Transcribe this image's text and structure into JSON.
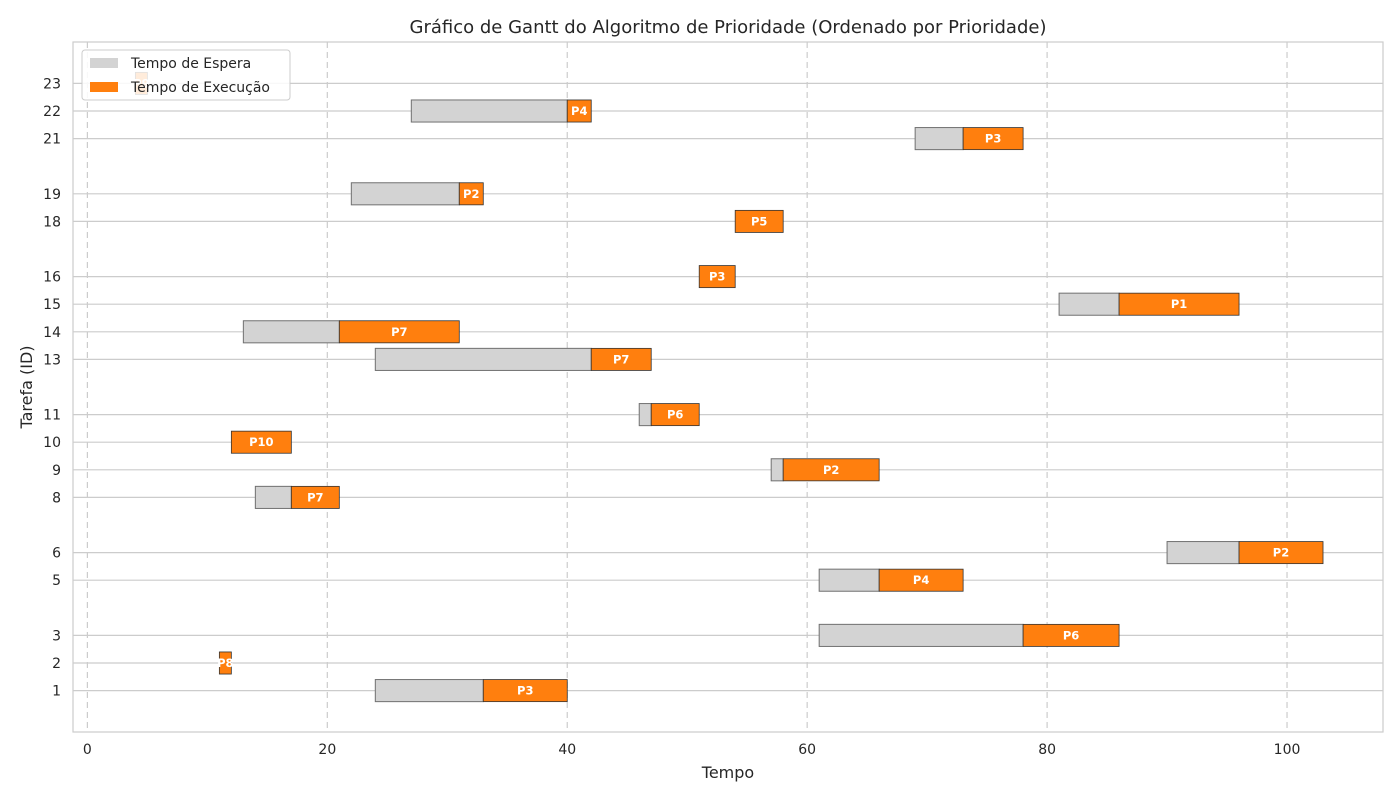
{
  "chart_data": {
    "type": "gantt",
    "title": "Gráfico de Gantt do Algoritmo de Prioridade (Ordenado por Prioridade)",
    "xlabel": "Tempo",
    "ylabel": "Tarefa (ID)",
    "xlim": [
      -1.2,
      108
    ],
    "ylim": [
      -0.5,
      24.5
    ],
    "x_ticks": [
      0,
      20,
      40,
      60,
      80,
      100
    ],
    "y_ticks": [
      1,
      2,
      3,
      5,
      6,
      8,
      9,
      10,
      11,
      13,
      14,
      15,
      16,
      18,
      19,
      21,
      22,
      23
    ],
    "grid": {
      "x": "dashed",
      "y": "solid"
    },
    "legend": {
      "placement": "top-left",
      "entries": [
        {
          "label": "Tempo de Espera",
          "color": "#d3d3d3"
        },
        {
          "label": "Tempo de Execução",
          "color": "#ff7f0e"
        }
      ]
    },
    "colors": {
      "wait": "#d3d3d3",
      "exec": "#ff7f0e"
    },
    "tasks": [
      {
        "id": 23,
        "arrival": 4,
        "start": 4,
        "end": 5,
        "priority": "P9"
      },
      {
        "id": 22,
        "arrival": 27,
        "start": 40,
        "end": 42,
        "priority": "P4"
      },
      {
        "id": 21,
        "arrival": 69,
        "start": 73,
        "end": 78,
        "priority": "P3"
      },
      {
        "id": 19,
        "arrival": 22,
        "start": 31,
        "end": 33,
        "priority": "P2"
      },
      {
        "id": 18,
        "arrival": 54,
        "start": 54,
        "end": 58,
        "priority": "P5"
      },
      {
        "id": 16,
        "arrival": 51,
        "start": 51,
        "end": 54,
        "priority": "P3"
      },
      {
        "id": 15,
        "arrival": 81,
        "start": 86,
        "end": 96,
        "priority": "P1"
      },
      {
        "id": 14,
        "arrival": 13,
        "start": 21,
        "end": 31,
        "priority": "P7"
      },
      {
        "id": 13,
        "arrival": 24,
        "start": 42,
        "end": 47,
        "priority": "P7"
      },
      {
        "id": 11,
        "arrival": 46,
        "start": 47,
        "end": 51,
        "priority": "P6"
      },
      {
        "id": 10,
        "arrival": 12,
        "start": 12,
        "end": 17,
        "priority": "P10"
      },
      {
        "id": 9,
        "arrival": 57,
        "start": 58,
        "end": 66,
        "priority": "P2"
      },
      {
        "id": 8,
        "arrival": 14,
        "start": 17,
        "end": 21,
        "priority": "P7"
      },
      {
        "id": 6,
        "arrival": 90,
        "start": 96,
        "end": 103,
        "priority": "P2"
      },
      {
        "id": 5,
        "arrival": 61,
        "start": 66,
        "end": 73,
        "priority": "P4"
      },
      {
        "id": 3,
        "arrival": 61,
        "start": 78,
        "end": 86,
        "priority": "P6"
      },
      {
        "id": 2,
        "arrival": 11,
        "start": 11,
        "end": 12,
        "priority": "P8"
      },
      {
        "id": 1,
        "arrival": 24,
        "start": 33,
        "end": 40,
        "priority": "P3"
      }
    ]
  }
}
